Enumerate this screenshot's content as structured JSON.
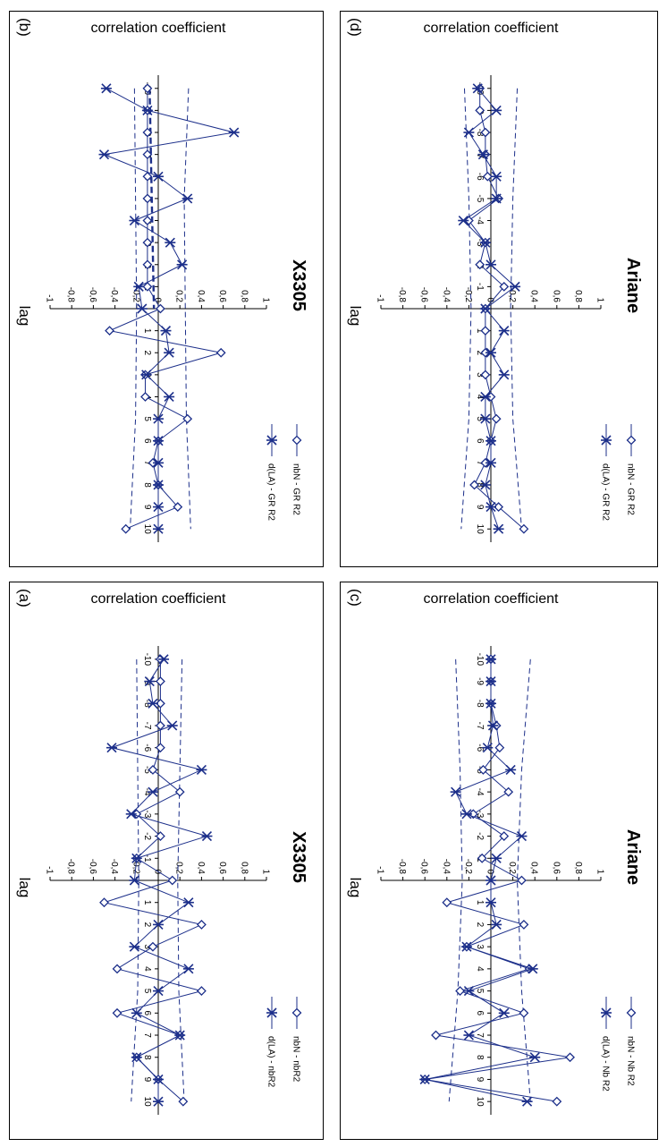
{
  "chart_data": [
    {
      "panel_letter": "(a)",
      "type": "line",
      "title": "X3305",
      "ylabel": "correlation coefficient",
      "xlabel": "lag",
      "x": [
        -10,
        -9,
        -8,
        -7,
        -6,
        -5,
        -4,
        -3,
        -2,
        -1,
        0,
        1,
        2,
        3,
        4,
        5,
        6,
        7,
        8,
        9,
        10
      ],
      "ylim": [
        -1,
        1
      ],
      "yticks": [
        1,
        0.8,
        0.6,
        0.4,
        0.2,
        0,
        -0.2,
        -0.4,
        -0.6,
        -0.8,
        -1
      ],
      "ytick_labels": [
        "1",
        "0,8",
        "0,6",
        "0,4",
        "0,2",
        "0",
        "-0,2",
        "-0,4",
        "-0,6",
        "-0,8",
        "-1"
      ],
      "xticks": [
        -10,
        -9,
        -8,
        -7,
        -6,
        -5,
        -4,
        -3,
        -2,
        -1,
        1,
        2,
        3,
        4,
        5,
        6,
        7,
        8,
        9,
        10
      ],
      "series": [
        {
          "name": "nbN - nbR2",
          "marker": "diamond",
          "values": [
            0.02,
            0.02,
            0.02,
            0.02,
            0.02,
            -0.05,
            0.2,
            -0.2,
            0.02,
            -0.2,
            0.13,
            -0.5,
            0.4,
            -0.05,
            -0.38,
            0.4,
            -0.38,
            0.2,
            -0.2,
            0.0,
            0.23
          ]
        },
        {
          "name": "d(LA) - nbR2",
          "marker": "star",
          "values": [
            0.05,
            -0.08,
            -0.05,
            0.13,
            -0.43,
            0.4,
            -0.05,
            -0.25,
            0.45,
            -0.2,
            -0.22,
            0.28,
            0.0,
            -0.22,
            0.28,
            0.0,
            -0.2,
            0.2,
            -0.2,
            0.0,
            0.0
          ]
        }
      ],
      "bands": [
        {
          "x": [
            -10,
            -5,
            0,
            5,
            10
          ],
          "values": [
            0.22,
            0.2,
            0.18,
            0.19,
            0.24
          ]
        },
        {
          "x": [
            -10,
            -5,
            0,
            5,
            10
          ],
          "values": [
            -0.2,
            -0.19,
            -0.18,
            -0.19,
            -0.25
          ]
        }
      ]
    },
    {
      "panel_letter": "(b)",
      "type": "line",
      "title": "X3305",
      "ylabel": "correlation coefficient",
      "xlabel": "lag",
      "x": [
        -10,
        -9,
        -8,
        -7,
        -6,
        -5,
        -4,
        -3,
        -2,
        -1,
        0,
        1,
        2,
        3,
        4,
        5,
        6,
        7,
        8,
        9,
        10
      ],
      "ylim": [
        -1,
        1
      ],
      "yticks": [
        1,
        0.8,
        0.6,
        0.4,
        0.2,
        0,
        -0.2,
        -0.4,
        -0.6,
        -0.8,
        -1
      ],
      "ytick_labels": [
        "1",
        "0,8",
        "0,6",
        "0,4",
        "0,2",
        "0",
        "-0,2",
        "-0,4",
        "-0,6",
        "-0,8",
        "-1"
      ],
      "xticks": [
        -10,
        -9,
        -8,
        -7,
        -6,
        -5,
        -4,
        -3,
        -2,
        -1,
        1,
        2,
        3,
        4,
        5,
        6,
        7,
        8,
        9,
        10
      ],
      "series": [
        {
          "name": "nbN - GR R2",
          "marker": "diamond",
          "values": [
            -0.1,
            -0.1,
            -0.1,
            -0.1,
            -0.1,
            -0.1,
            -0.1,
            -0.1,
            -0.1,
            -0.1,
            0.02,
            -0.45,
            0.58,
            -0.12,
            -0.12,
            0.27,
            0.0,
            -0.05,
            0.0,
            0.18,
            -0.3
          ]
        },
        {
          "name": "d(LA) - GR R2",
          "marker": "star",
          "values": [
            -0.48,
            -0.1,
            0.7,
            -0.5,
            0.0,
            0.27,
            -0.22,
            0.11,
            0.22,
            -0.18,
            -0.15,
            0.07,
            0.1,
            -0.11,
            0.1,
            0.0,
            0.0,
            0.0,
            0.0,
            0.0,
            0.0
          ]
        }
      ],
      "bands": [
        {
          "x": [
            -10,
            -5,
            0,
            5,
            10
          ],
          "values": [
            0.28,
            0.24,
            0.25,
            0.26,
            0.3
          ]
        },
        {
          "x": [
            -10,
            -5,
            0,
            5,
            10
          ],
          "values": [
            -0.22,
            -0.21,
            -0.2,
            -0.21,
            -0.26
          ]
        },
        {
          "x": [
            -10,
            -5,
            0
          ],
          "values": [
            -0.08,
            -0.06,
            -0.04
          ]
        }
      ]
    },
    {
      "panel_letter": "(c)",
      "type": "line",
      "title": "Ariane",
      "ylabel": "correlation coefficient",
      "xlabel": "lag",
      "x": [
        -10,
        -9,
        -8,
        -7,
        -6,
        -5,
        -4,
        -3,
        -2,
        -1,
        0,
        1,
        2,
        3,
        4,
        5,
        6,
        7,
        8,
        9,
        10
      ],
      "ylim": [
        -1,
        1
      ],
      "yticks": [
        1,
        0.8,
        0.6,
        0.4,
        0.2,
        0,
        -0.2,
        -0.4,
        -0.6,
        -0.8,
        -1
      ],
      "ytick_labels": [
        "1",
        "0,8",
        "0,6",
        "0,4",
        "0,2",
        "0",
        "-0,2",
        "-0,4",
        "-0,6",
        "-0,8",
        "-1"
      ],
      "xticks": [
        -10,
        -9,
        -8,
        -7,
        -6,
        -5,
        -4,
        -3,
        -2,
        -1,
        1,
        2,
        3,
        4,
        5,
        6,
        7,
        8,
        9,
        10
      ],
      "series": [
        {
          "name": "nbN - Nb R2",
          "marker": "diamond",
          "values": [
            0.0,
            0.0,
            0.0,
            0.05,
            0.08,
            -0.07,
            0.16,
            -0.16,
            0.12,
            -0.08,
            0.28,
            -0.4,
            0.3,
            -0.22,
            0.35,
            -0.28,
            0.3,
            -0.5,
            0.72,
            -0.6,
            0.6
          ]
        },
        {
          "name": "d(LA) - Nb R2",
          "marker": "star",
          "values": [
            0.0,
            0.0,
            0.0,
            0.02,
            -0.03,
            0.18,
            -0.32,
            -0.22,
            0.28,
            0.05,
            0.0,
            0.0,
            0.05,
            -0.22,
            0.38,
            -0.2,
            0.12,
            -0.2,
            0.4,
            -0.6,
            0.33
          ]
        }
      ],
      "bands": [
        {
          "x": [
            -10,
            -5,
            0,
            5,
            10
          ],
          "values": [
            0.36,
            0.28,
            0.24,
            0.28,
            0.36
          ]
        },
        {
          "x": [
            -10,
            -5,
            0,
            5,
            10
          ],
          "values": [
            -0.32,
            -0.28,
            -0.26,
            -0.3,
            -0.38
          ]
        }
      ]
    },
    {
      "panel_letter": "(d)",
      "type": "line",
      "title": "Ariane",
      "ylabel": "correlation coefficient",
      "xlabel": "lag",
      "x": [
        -10,
        -9,
        -8,
        -7,
        -6,
        -5,
        -4,
        -3,
        -2,
        -1,
        0,
        1,
        2,
        3,
        4,
        5,
        6,
        7,
        8,
        9,
        10
      ],
      "ylim": [
        -1,
        1
      ],
      "yticks": [
        1,
        0.8,
        0.6,
        0.4,
        0.2,
        0,
        -0.2,
        -0.4,
        -0.6,
        -0.8,
        -1
      ],
      "ytick_labels": [
        "1",
        "0,8",
        "0,6",
        "0,4",
        "0,2",
        "0",
        "-0,2",
        "-0,4",
        "-0,6",
        "-0,8",
        "-1"
      ],
      "xticks": [
        -10,
        -9,
        -8,
        -7,
        -6,
        -5,
        -4,
        -3,
        -2,
        -1,
        1,
        2,
        3,
        4,
        5,
        6,
        7,
        8,
        9,
        10
      ],
      "series": [
        {
          "name": "nbN - GR R2",
          "marker": "diamond",
          "values": [
            -0.1,
            -0.1,
            -0.05,
            -0.05,
            -0.03,
            0.07,
            -0.2,
            -0.05,
            -0.1,
            0.12,
            -0.05,
            -0.05,
            -0.05,
            -0.05,
            0.0,
            0.05,
            0.0,
            -0.05,
            -0.15,
            0.07,
            0.3
          ]
        },
        {
          "name": "d(LA) - GR R2",
          "marker": "star",
          "values": [
            -0.12,
            0.05,
            -0.2,
            -0.07,
            0.05,
            0.05,
            -0.25,
            -0.05,
            0.0,
            0.22,
            -0.05,
            0.12,
            0.0,
            0.12,
            -0.05,
            -0.05,
            0.0,
            0.0,
            -0.05,
            0.0,
            0.07
          ]
        }
      ],
      "bands": [
        {
          "x": [
            -10,
            -5,
            0,
            5,
            10
          ],
          "values": [
            0.24,
            0.2,
            0.18,
            0.2,
            0.28
          ]
        },
        {
          "x": [
            -10,
            -5,
            0,
            5,
            10
          ],
          "values": [
            -0.24,
            -0.2,
            -0.18,
            -0.2,
            -0.27
          ]
        }
      ]
    }
  ]
}
